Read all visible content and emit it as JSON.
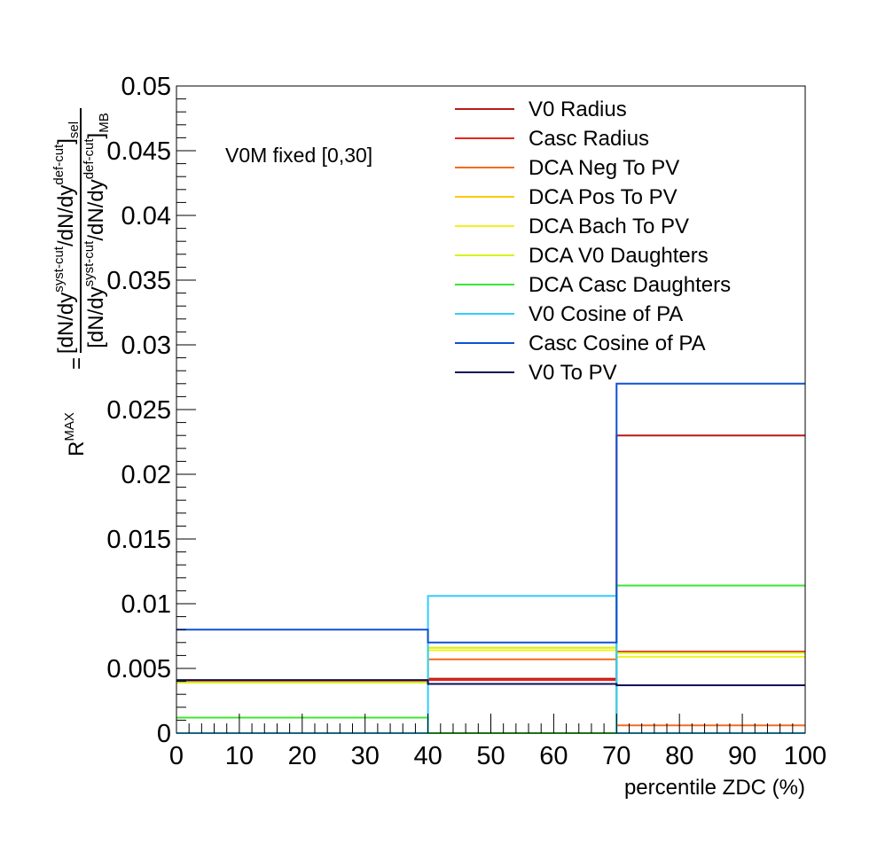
{
  "chart_data": {
    "type": "line",
    "xlabel": "percentile ZDC (%)",
    "ylabel": {
      "lhs": "R",
      "lhs_sup": "MAX",
      "eq": "=",
      "num_open": "[dN/dy",
      "num_sup1": "syst-cut",
      "num_mid": "/dN/dy",
      "num_sup2": "def-cut",
      "num_close": "]",
      "num_sub": "sel",
      "den_open": "[dN/dy",
      "den_sup1": "syst-cut",
      "den_mid": "/dN/dy",
      "den_sup2": "def-cut",
      "den_close": "]",
      "den_sub": "MB"
    },
    "annotation": "V0M fixed [0,30]",
    "xlim": [
      0,
      100
    ],
    "ylim": [
      0,
      0.05
    ],
    "x_ticks": [
      0,
      10,
      20,
      30,
      40,
      50,
      60,
      70,
      80,
      90,
      100
    ],
    "x_tick_labels": [
      "0",
      "10",
      "20",
      "30",
      "40",
      "50",
      "60",
      "70",
      "80",
      "90",
      "100"
    ],
    "y_ticks": [
      0,
      0.005,
      0.01,
      0.015,
      0.02,
      0.025,
      0.03,
      0.035,
      0.04,
      0.045,
      0.05
    ],
    "y_tick_labels": [
      "0",
      "0.005",
      "0.01",
      "0.015",
      "0.02",
      "0.025",
      "0.03",
      "0.035",
      "0.04",
      "0.045",
      "0.05"
    ],
    "bin_edges": [
      0,
      40,
      70,
      100
    ],
    "grid": false,
    "legend_position": "top-right",
    "series": [
      {
        "name": "V0 Radius",
        "color": "#b51b17",
        "values": [
          0.004,
          0.0042,
          0.023
        ]
      },
      {
        "name": "Casc Radius",
        "color": "#e8241c",
        "values": [
          0.004,
          0.0041,
          0.0063
        ]
      },
      {
        "name": "DCA Neg To PV",
        "color": "#f56a1f",
        "values": [
          0.004,
          0.0057,
          0.0006
        ]
      },
      {
        "name": "DCA Pos To PV",
        "color": "#ffcc00",
        "values": [
          0.0039,
          0.0066,
          0.0062
        ]
      },
      {
        "name": "DCA Bach To PV",
        "color": "#f2f21e",
        "values": [
          0.0039,
          0.0064,
          0.0059
        ]
      },
      {
        "name": "DCA V0 Daughters",
        "color": "#d6f21c",
        "values": [
          0.0039,
          0.0066,
          0.0062
        ]
      },
      {
        "name": "DCA Casc Daughters",
        "color": "#3de534",
        "values": [
          0.0012,
          0.0,
          0.0114
        ]
      },
      {
        "name": "V0 Cosine of PA",
        "color": "#33ccff",
        "values": [
          0.0,
          0.0106,
          0.0
        ]
      },
      {
        "name": "Casc Cosine of PA",
        "color": "#0f50d6",
        "values": [
          0.008,
          0.007,
          0.027
        ]
      },
      {
        "name": "V0 To PV",
        "color": "#0d0f5c",
        "values": [
          0.0041,
          0.0038,
          0.0037
        ]
      }
    ]
  }
}
